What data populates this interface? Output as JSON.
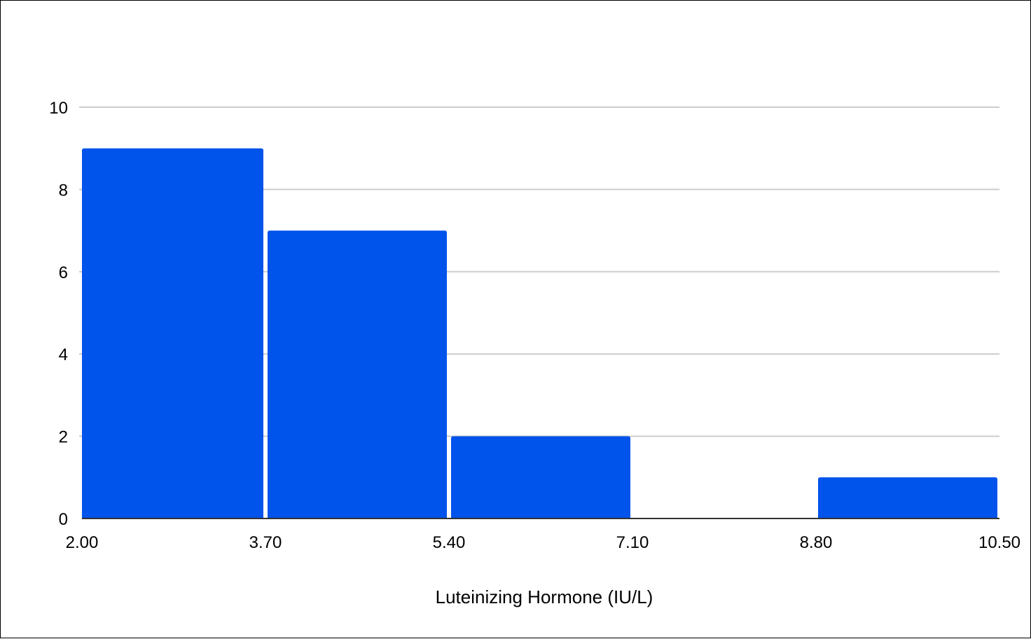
{
  "chart_data": {
    "type": "bar",
    "title": "",
    "xlabel": "Luteinizing Hormone (IU/L)",
    "ylabel": "",
    "bins": [
      {
        "start": 2.0,
        "end": 3.7,
        "count": 9
      },
      {
        "start": 3.7,
        "end": 5.4,
        "count": 7
      },
      {
        "start": 5.4,
        "end": 7.1,
        "count": 2
      },
      {
        "start": 7.1,
        "end": 8.8,
        "count": 0
      },
      {
        "start": 8.8,
        "end": 10.5,
        "count": 1
      }
    ],
    "x_ticks": [
      "2.00",
      "3.70",
      "5.40",
      "7.10",
      "8.80",
      "10.50"
    ],
    "y_ticks": [
      0,
      2,
      4,
      6,
      8,
      10
    ],
    "xlim": [
      2.0,
      10.5
    ],
    "ylim": [
      0,
      10
    ],
    "grid": true,
    "bar_color": "#0053EB",
    "grid_color": "#CCCCCC",
    "axis_color": "#333333"
  }
}
